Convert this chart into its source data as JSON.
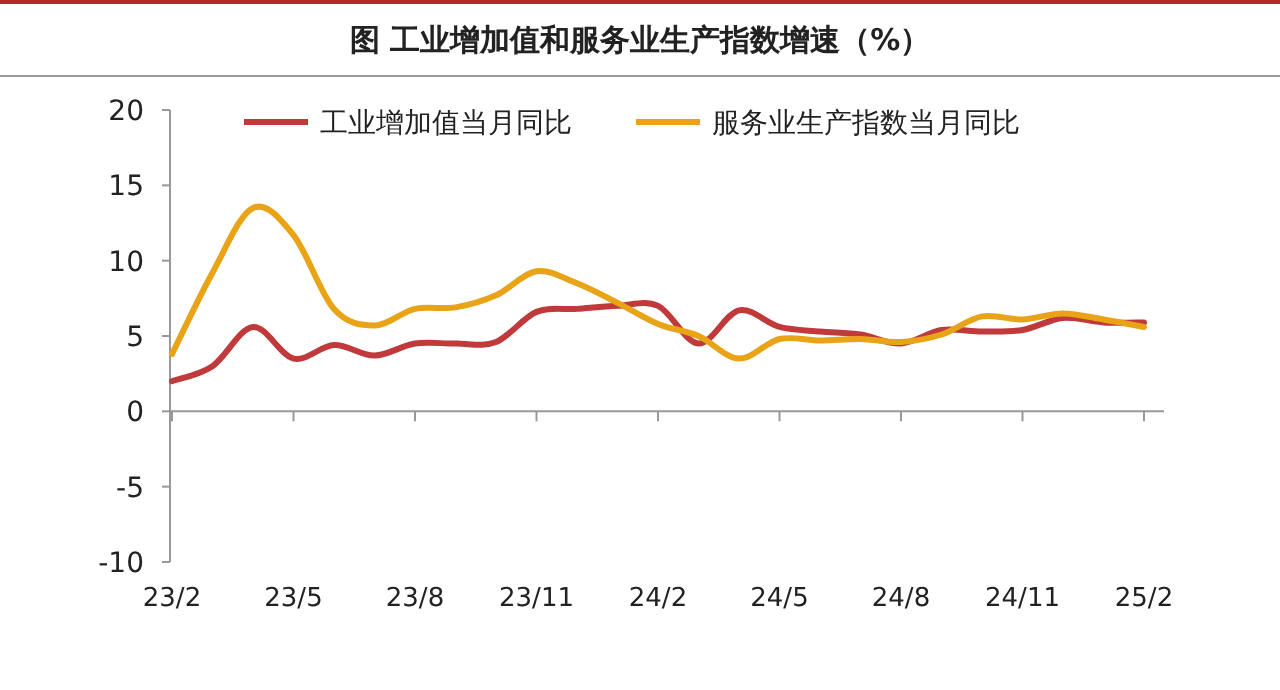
{
  "chart_data": {
    "type": "line",
    "title": "图  工业增加值和服务业生产指数增速（%）",
    "categories": [
      "23/2",
      null,
      null,
      "23/5",
      null,
      null,
      "23/8",
      null,
      null,
      "23/11",
      null,
      null,
      "24/2",
      null,
      null,
      "24/5",
      null,
      null,
      "24/8",
      null,
      null,
      "24/11",
      null,
      null,
      "25/2"
    ],
    "series": [
      {
        "name": "工业增加值当月同比",
        "color": "#c0393b",
        "values": [
          2.0,
          3.0,
          5.6,
          3.5,
          4.4,
          3.7,
          4.5,
          4.5,
          4.6,
          6.6,
          6.8,
          7.0,
          7.0,
          4.5,
          6.7,
          5.6,
          5.3,
          5.1,
          4.5,
          5.4,
          5.3,
          5.4,
          6.2,
          5.9,
          5.9
        ]
      },
      {
        "name": "服务业生产指数当月同比",
        "color": "#e8a317",
        "values": [
          3.8,
          9.2,
          13.5,
          11.7,
          6.8,
          5.7,
          6.8,
          6.9,
          7.7,
          9.3,
          8.5,
          7.2,
          5.8,
          5.0,
          3.5,
          4.8,
          4.7,
          4.8,
          4.6,
          5.1,
          6.3,
          6.1,
          6.5,
          6.1,
          5.6
        ]
      }
    ],
    "ylim": [
      -10,
      20
    ],
    "yticks": [
      -10,
      -5,
      0,
      5,
      10,
      15,
      20
    ],
    "legend": "top",
    "marker": "none",
    "line_style": "solid"
  }
}
